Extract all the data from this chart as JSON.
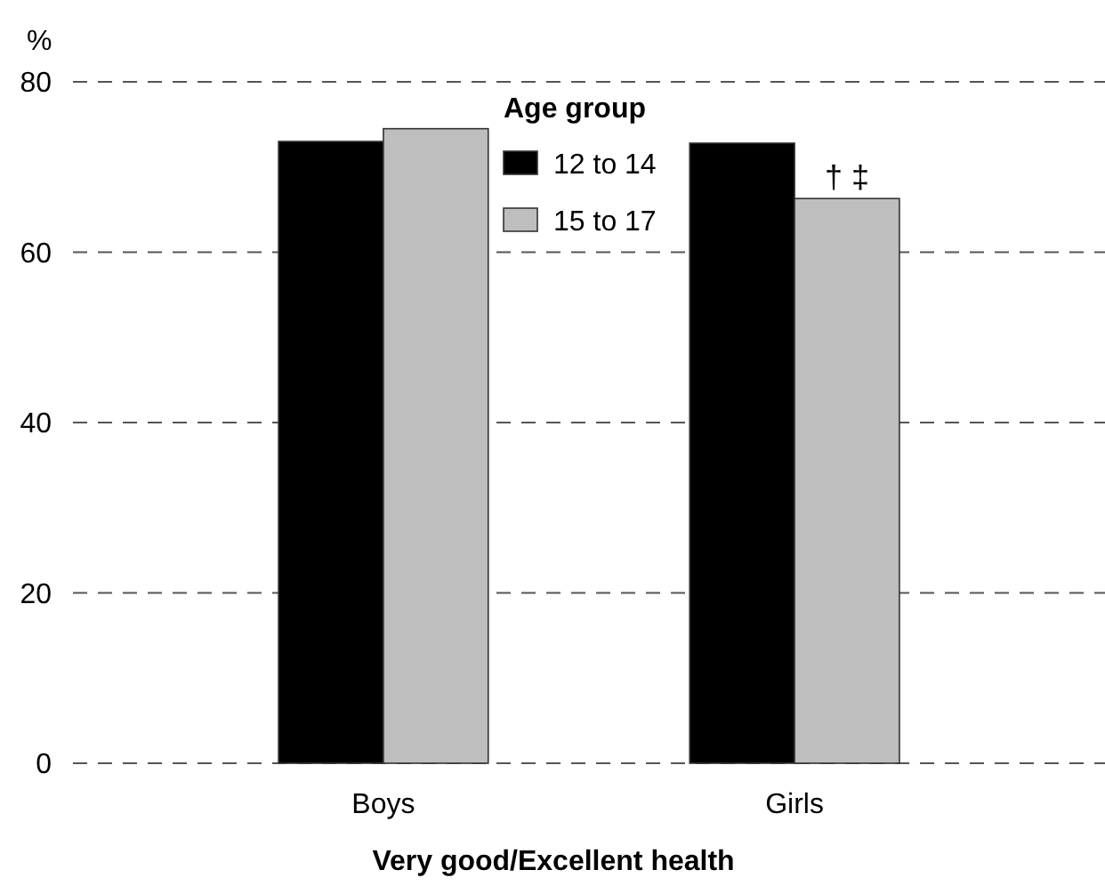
{
  "chart_data": {
    "type": "bar",
    "categories": [
      "Boys",
      "Girls"
    ],
    "series": [
      {
        "name": "12 to 14",
        "color": "#000000",
        "values": [
          73.0,
          72.8
        ]
      },
      {
        "name": "15 to 17",
        "color": "#bebebe",
        "values": [
          74.5,
          66.3
        ]
      }
    ],
    "xlabel": "Very good/Excellent health",
    "ylabel": "%",
    "legend_title": "Age group",
    "legend": "top",
    "ylim": [
      0,
      80
    ],
    "yticks": [
      0,
      20,
      40,
      60,
      80
    ],
    "grid": "y",
    "annotations": [
      {
        "text": "† ‡",
        "x": "Girls",
        "y": 66.3
      }
    ]
  }
}
